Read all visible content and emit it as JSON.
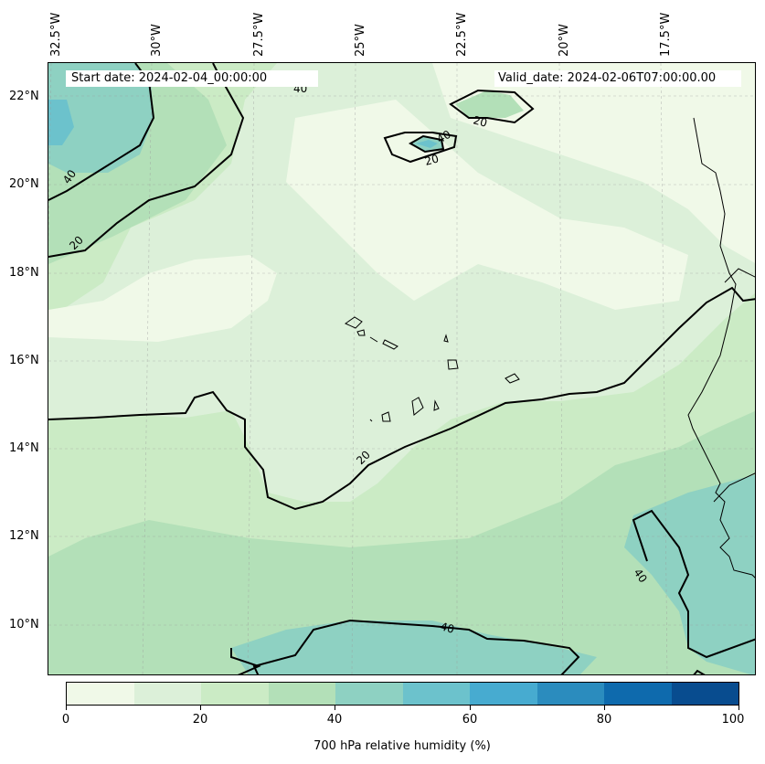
{
  "map": {
    "start_date": "Start date: 2024-02-04_00:00:00",
    "valid_date": "Valid_date: 2024-02-06T07:00:00.00",
    "lon_labels": [
      "32.5°W",
      "30°W",
      "27.5°W",
      "25°W",
      "22.5°W",
      "20°W",
      "17.5°W"
    ],
    "lat_labels": [
      "22°N",
      "20°N",
      "18°N",
      "16°N",
      "14°N",
      "12°N",
      "10°N"
    ],
    "contour_labels": [
      "40",
      "20",
      "40",
      "20",
      "20",
      "20",
      "40",
      "40"
    ],
    "contour_labels_top": "40",
    "projection_grid": "dashed gray graticule",
    "land_outline": "coastline and country borders (West Africa, Cape Verde islands)"
  },
  "colorbar": {
    "title": "700 hPa relative humidity (%)",
    "ticks": [
      "0",
      "20",
      "40",
      "60",
      "80",
      "100"
    ],
    "colors": [
      "#f0f9e8",
      "#dcf0d9",
      "#cbebc5",
      "#b3e0b8",
      "#8ed1c2",
      "#6cc2cc",
      "#47abd0",
      "#2b8cbe",
      "#0e6aad",
      "#084c8f"
    ],
    "range": [
      0,
      100
    ]
  }
}
